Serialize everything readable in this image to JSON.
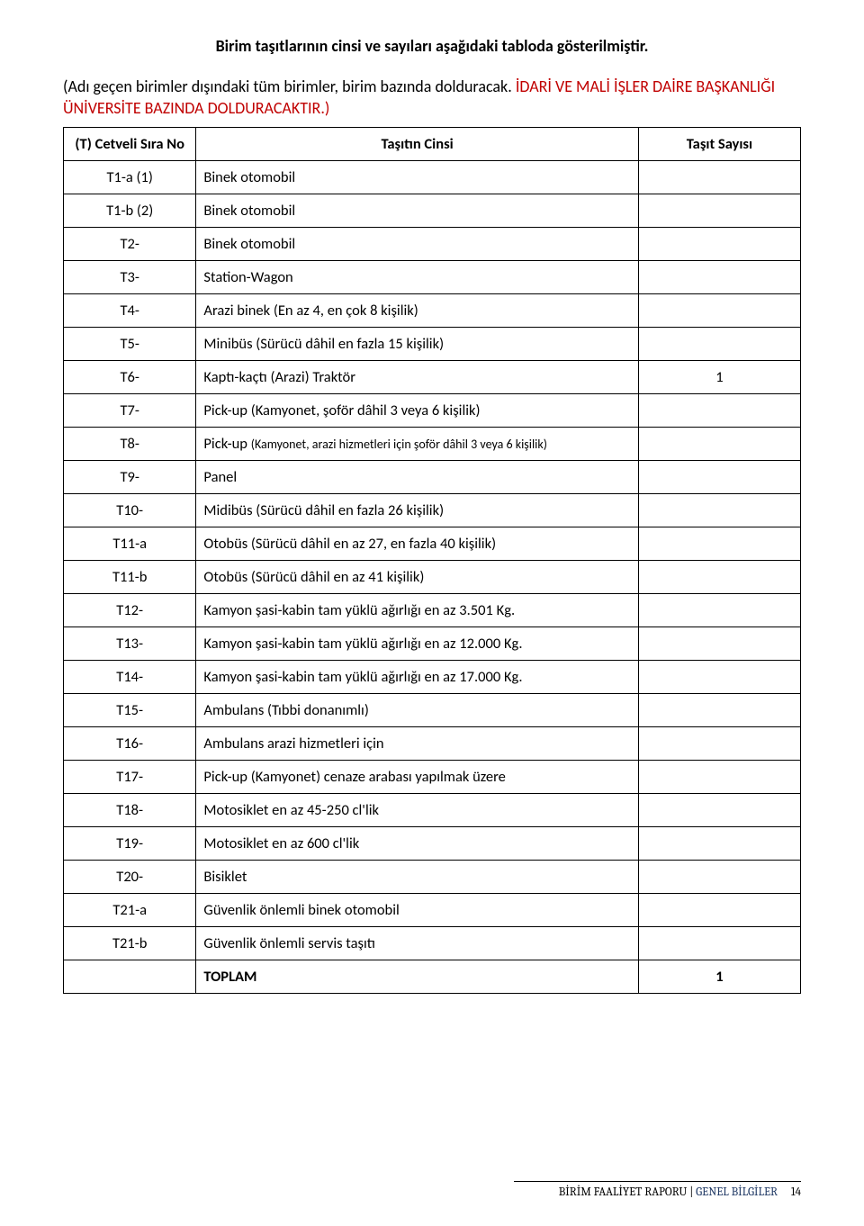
{
  "title": "Birim taşıtlarının cinsi ve sayıları aşağıdaki tabloda gösterilmiştir.",
  "intro_black": "(Adı geçen birimler dışındaki tüm birimler, birim bazında dolduracak. ",
  "intro_red": "İDARİ VE MALİ İŞLER DAİRE BAŞKANLIĞI ÜNİVERSİTE BAZINDA DOLDURACAKTIR.)",
  "table": {
    "headers": {
      "no": "(T) Cetveli Sıra No",
      "cinsi": "Taşıtın Cinsi",
      "sayi": "Taşıt Sayısı"
    },
    "rows": [
      {
        "no": "T1-a (1)",
        "cinsi": "Binek otomobil",
        "sayi": "",
        "small": false
      },
      {
        "no": "T1-b (2)",
        "cinsi": "Binek otomobil",
        "sayi": "",
        "small": false
      },
      {
        "no": "T2-",
        "cinsi": "Binek otomobil",
        "sayi": "",
        "small": false
      },
      {
        "no": "T3-",
        "cinsi": "Station-Wagon",
        "sayi": "",
        "small": false
      },
      {
        "no": "T4-",
        "cinsi": "Arazi binek (En az 4, en çok 8 kişilik)",
        "sayi": "",
        "small": false
      },
      {
        "no": "T5-",
        "cinsi": "Minibüs (Sürücü dâhil en fazla 15 kişilik)",
        "sayi": "",
        "small": false
      },
      {
        "no": "T6-",
        "cinsi": "Kaptı-kaçtı (Arazi) Traktör",
        "sayi": "1",
        "small": false
      },
      {
        "no": "T7-",
        "cinsi": "Pick-up (Kamyonet, şoför dâhil 3 veya 6 kişilik)",
        "sayi": "",
        "small": false
      },
      {
        "no": "T8-",
        "cinsi": "Pick-up (Kamyonet, arazi hizmetleri için şoför dâhil 3 veya 6 kişilik)",
        "sayi": "",
        "small": true
      },
      {
        "no": "T9-",
        "cinsi": "Panel",
        "sayi": "",
        "small": false
      },
      {
        "no": "T10-",
        "cinsi": "Midibüs (Sürücü dâhil en fazla 26 kişilik)",
        "sayi": "",
        "small": false
      },
      {
        "no": "T11-a",
        "cinsi": "Otobüs (Sürücü dâhil en az 27, en fazla 40 kişilik)",
        "sayi": "",
        "small": false
      },
      {
        "no": "T11-b",
        "cinsi": "Otobüs (Sürücü dâhil en az 41 kişilik)",
        "sayi": "",
        "small": false
      },
      {
        "no": "T12-",
        "cinsi": "Kamyon şasi-kabin tam yüklü ağırlığı en az 3.501 Kg.",
        "sayi": "",
        "small": false
      },
      {
        "no": "T13-",
        "cinsi": "Kamyon şasi-kabin tam yüklü ağırlığı en az 12.000 Kg.",
        "sayi": "",
        "small": false
      },
      {
        "no": "T14-",
        "cinsi": "Kamyon şasi-kabin tam yüklü ağırlığı en az 17.000 Kg.",
        "sayi": "",
        "small": false
      },
      {
        "no": "T15-",
        "cinsi": "Ambulans (Tıbbi donanımlı)",
        "sayi": "",
        "small": false
      },
      {
        "no": "T16-",
        "cinsi": "Ambulans arazi hizmetleri için",
        "sayi": "",
        "small": false
      },
      {
        "no": "T17-",
        "cinsi": "Pick-up (Kamyonet) cenaze arabası yapılmak üzere",
        "sayi": "",
        "small": false
      },
      {
        "no": "T18-",
        "cinsi": "Motosiklet en az 45-250 cl'lik",
        "sayi": "",
        "small": false
      },
      {
        "no": "T19-",
        "cinsi": "Motosiklet en az 600 cl'lik",
        "sayi": "",
        "small": false
      },
      {
        "no": "T20-",
        "cinsi": "Bisiklet",
        "sayi": "",
        "small": false
      },
      {
        "no": "T21-a",
        "cinsi": "Güvenlik önlemli binek otomobil",
        "sayi": "",
        "small": false
      },
      {
        "no": "T21-b",
        "cinsi": "Güvenlik önlemli servis taşıtı",
        "sayi": "",
        "small": false
      }
    ],
    "total": {
      "label": "TOPLAM",
      "value": "1"
    }
  },
  "footer": {
    "report": "BİRİM FAALİYET RAPORU",
    "section": "GENEL BİLGİLER",
    "page": "14"
  },
  "colors": {
    "text": "#000000",
    "red": "#c00000",
    "footer_blue": "#1f3864",
    "border": "#000000",
    "background": "#ffffff"
  }
}
